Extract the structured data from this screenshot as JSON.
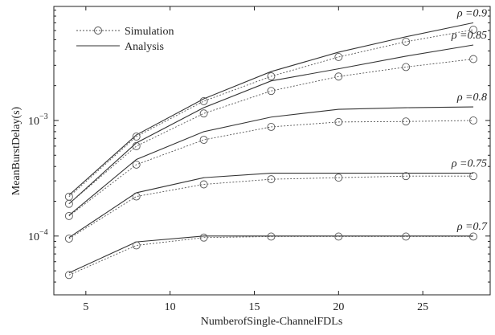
{
  "chart_data": {
    "type": "line",
    "xlabel": "NumberofSingle-ChannelFDLs",
    "ylabel": "MeanBurstDelay(s)",
    "x": [
      4,
      8,
      12,
      16,
      20,
      24,
      28
    ],
    "xlim": [
      3.1,
      29
    ],
    "xticks": [
      5,
      10,
      15,
      20,
      25
    ],
    "ylim": [
      3.1e-05,
      0.0097
    ],
    "log_y": true,
    "yticks": [
      {
        "value": 0.0001,
        "label": "10",
        "exponent": "−4"
      },
      {
        "value": 0.001,
        "label": "10",
        "exponent": "−3"
      }
    ],
    "minor_yticks": [
      4e-05,
      5e-05,
      6e-05,
      7e-05,
      8e-05,
      9e-05,
      0.0002,
      0.0003,
      0.0004,
      0.0005,
      0.0006,
      0.0007,
      0.0008,
      0.0009,
      0.002,
      0.003,
      0.004,
      0.005,
      0.006,
      0.007,
      0.008,
      0.009
    ],
    "legend": "upper left",
    "series": [
      {
        "name": "Simulation",
        "color": "#555555"
      },
      {
        "name": "Analysis",
        "color": "#333333"
      }
    ],
    "curves": [
      {
        "label": "ρ =0.9",
        "simulation": [
          0.000219,
          0.000726,
          0.00147,
          0.00241,
          0.00354,
          0.0048,
          0.0061
        ],
        "analysis": [
          0.000226,
          0.00075,
          0.00154,
          0.00265,
          0.0039,
          0.0053,
          0.007
        ]
      },
      {
        "label": "ρ =0.85",
        "simulation": [
          0.00019,
          0.0006,
          0.00115,
          0.0018,
          0.0024,
          0.0029,
          0.0034
        ],
        "analysis": [
          0.00019,
          0.00064,
          0.00129,
          0.0022,
          0.0028,
          0.0036,
          0.0045
        ]
      },
      {
        "label": "ρ =0.8",
        "simulation": [
          0.000149,
          0.000415,
          0.00068,
          0.00088,
          0.00097,
          0.00098,
          0.001
        ],
        "analysis": [
          0.000151,
          0.00046,
          0.0008,
          0.00107,
          0.00125,
          0.00129,
          0.00131
        ]
      },
      {
        "label": "ρ =0.75",
        "simulation": [
          9.5e-05,
          0.00022,
          0.00028,
          0.00031,
          0.00032,
          0.00033,
          0.00033
        ],
        "analysis": [
          9.7e-05,
          0.000237,
          0.00032,
          0.00035,
          0.00035,
          0.00035,
          0.00035
        ]
      },
      {
        "label": "ρ =0.7",
        "simulation": [
          4.6e-05,
          8.3e-05,
          9.7e-05,
          9.9e-05,
          9.9e-05,
          9.9e-05,
          9.9e-05
        ],
        "analysis": [
          4.8e-05,
          8.9e-05,
          0.0001,
          0.0001,
          0.0001,
          0.0001,
          0.0001
        ]
      }
    ]
  }
}
